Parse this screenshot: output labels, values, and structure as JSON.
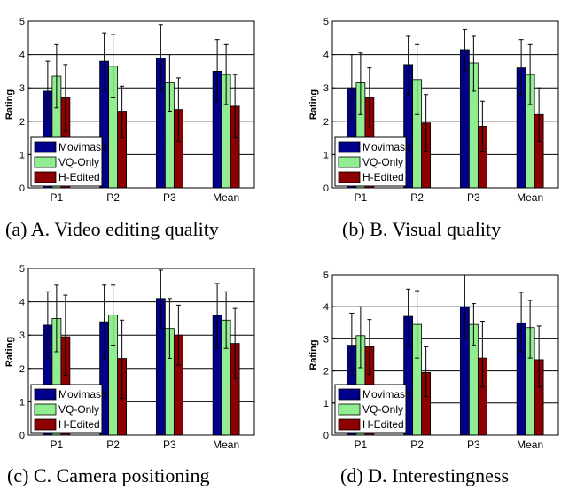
{
  "series_names": [
    "Movimash",
    "VQ-Only",
    "H-Edited"
  ],
  "colors": {
    "movimash": "#00008b",
    "vq_only": "#90ee90",
    "h_edited": "#8b0000"
  },
  "chart_data": [
    {
      "type": "bar",
      "caption": "(a) A. Video editing quality",
      "categories": [
        "P1",
        "P2",
        "P3",
        "Mean"
      ],
      "ylabel": "Rating",
      "ylim": [
        0,
        5
      ],
      "yticks": [
        0,
        1,
        2,
        3,
        4,
        5
      ],
      "grid": true,
      "legend": "bottom-left",
      "series": [
        {
          "name": "Movimash",
          "values": [
            2.9,
            3.8,
            3.9,
            3.5
          ],
          "err_low": [
            2.0,
            2.9,
            2.9,
            2.6
          ],
          "err_high": [
            3.8,
            4.65,
            4.9,
            4.45
          ]
        },
        {
          "name": "VQ-Only",
          "values": [
            3.35,
            3.65,
            3.15,
            3.4
          ],
          "err_low": [
            2.4,
            2.7,
            2.3,
            2.5
          ],
          "err_high": [
            4.3,
            4.6,
            4.0,
            4.3
          ]
        },
        {
          "name": "H-Edited",
          "values": [
            2.7,
            2.3,
            2.35,
            2.45
          ],
          "err_low": [
            1.7,
            1.5,
            1.4,
            1.5
          ],
          "err_high": [
            3.7,
            3.05,
            3.3,
            3.4
          ]
        }
      ]
    },
    {
      "type": "bar",
      "caption": "(b) B. Visual quality",
      "categories": [
        "P1",
        "P2",
        "P3",
        "Mean"
      ],
      "ylabel": "Rating",
      "ylim": [
        0,
        5
      ],
      "yticks": [
        0,
        1,
        2,
        3,
        4,
        5
      ],
      "grid": true,
      "legend": "bottom-left",
      "series": [
        {
          "name": "Movimash",
          "values": [
            3.0,
            3.7,
            4.15,
            3.6
          ],
          "err_low": [
            2.0,
            2.8,
            3.5,
            2.8
          ],
          "err_high": [
            4.0,
            4.55,
            4.75,
            4.45
          ]
        },
        {
          "name": "VQ-Only",
          "values": [
            3.15,
            3.25,
            3.75,
            3.4
          ],
          "err_low": [
            2.2,
            2.2,
            2.9,
            2.5
          ],
          "err_high": [
            4.05,
            4.3,
            4.55,
            4.3
          ]
        },
        {
          "name": "H-Edited",
          "values": [
            2.7,
            1.95,
            1.85,
            2.2
          ],
          "err_low": [
            1.8,
            1.1,
            1.1,
            1.4
          ],
          "err_high": [
            3.6,
            2.8,
            2.6,
            3.0
          ]
        }
      ]
    },
    {
      "type": "bar",
      "caption": "(c) C. Camera positioning",
      "categories": [
        "P1",
        "P2",
        "P3",
        "Mean"
      ],
      "ylabel": "Rating",
      "ylim": [
        0,
        5
      ],
      "yticks": [
        0,
        1,
        2,
        3,
        4,
        5
      ],
      "grid": true,
      "legend": "bottom-left",
      "series": [
        {
          "name": "Movimash",
          "values": [
            3.3,
            3.4,
            4.1,
            3.6
          ],
          "err_low": [
            2.3,
            2.3,
            3.2,
            2.6
          ],
          "err_high": [
            4.3,
            4.5,
            4.95,
            4.55
          ]
        },
        {
          "name": "VQ-Only",
          "values": [
            3.5,
            3.6,
            3.2,
            3.45
          ],
          "err_low": [
            2.5,
            2.7,
            2.3,
            2.6
          ],
          "err_high": [
            4.5,
            4.5,
            4.1,
            4.3
          ]
        },
        {
          "name": "H-Edited",
          "values": [
            2.95,
            2.3,
            3.0,
            2.75
          ],
          "err_low": [
            1.8,
            1.1,
            2.1,
            1.7
          ],
          "err_high": [
            4.2,
            3.45,
            3.9,
            3.8
          ]
        }
      ]
    },
    {
      "type": "bar",
      "caption": "(d) D. Interestingness",
      "categories": [
        "P1",
        "P2",
        "P3",
        "Mean"
      ],
      "ylabel": "Rating",
      "ylim": [
        0,
        5
      ],
      "yticks": [
        0,
        1,
        2,
        3,
        4,
        5
      ],
      "grid": true,
      "legend": "bottom-left",
      "series": [
        {
          "name": "Movimash",
          "values": [
            2.8,
            3.7,
            4.0,
            3.5
          ],
          "err_low": [
            1.8,
            2.8,
            3.0,
            2.6
          ],
          "err_high": [
            3.8,
            4.55,
            5.0,
            4.45
          ]
        },
        {
          "name": "VQ-Only",
          "values": [
            3.1,
            3.45,
            3.45,
            3.35
          ],
          "err_low": [
            2.1,
            2.4,
            2.8,
            2.4
          ],
          "err_high": [
            4.0,
            4.5,
            4.1,
            4.2
          ]
        },
        {
          "name": "H-Edited",
          "values": [
            2.75,
            1.95,
            2.4,
            2.35
          ],
          "err_low": [
            1.9,
            1.2,
            1.5,
            1.5
          ],
          "err_high": [
            3.6,
            2.75,
            3.55,
            3.4
          ]
        }
      ]
    }
  ]
}
